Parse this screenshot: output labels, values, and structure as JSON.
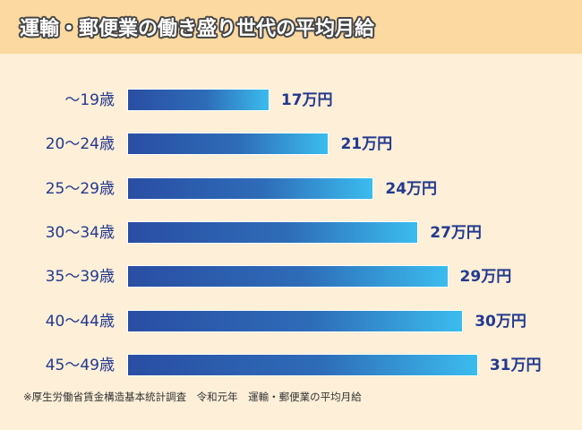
{
  "title": "運輸・郵便業の働き盛り世代の平均月給",
  "footnote": "※厚生労働省賃金構造基本統計調査　令和元年　運輸・郵便業の平均月給",
  "chart_data": {
    "type": "bar",
    "orientation": "horizontal",
    "title": "運輸・郵便業の働き盛り世代の平均月給",
    "categories": [
      "〜19歳",
      "20〜24歳",
      "25〜29歳",
      "30〜34歳",
      "35〜39歳",
      "40〜44歳",
      "45〜49歳"
    ],
    "values": [
      17,
      21,
      24,
      27,
      29,
      30,
      31
    ],
    "value_labels": [
      "17万円",
      "21万円",
      "24万円",
      "27万円",
      "29万円",
      "30万円",
      "31万円"
    ],
    "unit": "万円",
    "grid": false,
    "colors": {
      "bar_start": "#2a4ea3",
      "bar_end": "#3bbcee",
      "text": "#23398e",
      "header": "#fbd9a0",
      "background": "#fdefd8"
    }
  }
}
